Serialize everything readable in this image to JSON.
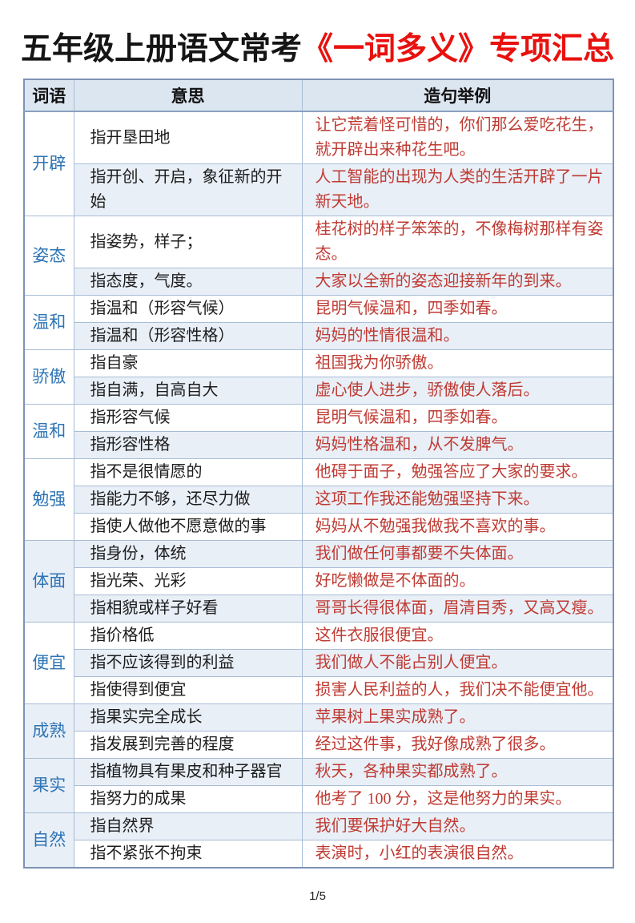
{
  "page": {
    "title_black": "五年级上册语文常考",
    "title_red": "《一词多义》专项汇总",
    "footer": "1/5"
  },
  "colors": {
    "title_red": "#e8110e",
    "word_blue": "#2e74b5",
    "example_red": "#bf3a32",
    "header_bg": "#dce6f1",
    "alt_row_bg": "#e9eff7",
    "border": "#a8bdd6"
  },
  "table": {
    "headers": [
      "词语",
      "意思",
      "造句举例"
    ],
    "groups": [
      {
        "word": "开辟",
        "rows": [
          {
            "meaning": "指开垦田地",
            "example": "让它荒着怪可惜的，你们那么爱吃花生，就开辟出来种花生吧。",
            "tall": true
          },
          {
            "meaning": "指开创、开启，象征新的开始",
            "example": "人工智能的出现为人类的生活开辟了一片新天地。",
            "tall": true
          }
        ]
      },
      {
        "word": "姿态",
        "rows": [
          {
            "meaning": "指姿势，样子；",
            "example": "桂花树的样子笨笨的，不像梅树那样有姿态。",
            "tall": true
          },
          {
            "meaning": "指态度，气度。",
            "example": "大家以全新的姿态迎接新年的到来。",
            "tall": false
          }
        ]
      },
      {
        "word": "温和",
        "rows": [
          {
            "meaning": "指温和（形容气候）",
            "example": "昆明气候温和，四季如春。",
            "tall": false
          },
          {
            "meaning": "指温和（形容性格）",
            "example": "妈妈的性情很温和。",
            "tall": false
          }
        ]
      },
      {
        "word": "骄傲",
        "rows": [
          {
            "meaning": "指自豪",
            "example": "祖国我为你骄傲。",
            "tall": false
          },
          {
            "meaning": "指自满，自高自大",
            "example": "虚心使人进步，骄傲使人落后。",
            "tall": false
          }
        ]
      },
      {
        "word": "温和",
        "rows": [
          {
            "meaning": "指形容气候",
            "example": "昆明气候温和，四季如春。",
            "tall": false
          },
          {
            "meaning": "指形容性格",
            "example": "妈妈性格温和，从不发脾气。",
            "tall": false
          }
        ]
      },
      {
        "word": "勉强",
        "rows": [
          {
            "meaning": "指不是很情愿的",
            "example": "他碍于面子，勉强答应了大家的要求。",
            "tall": false
          },
          {
            "meaning": "指能力不够，还尽力做",
            "example": "这项工作我还能勉强坚持下来。",
            "tall": false
          },
          {
            "meaning": "指使人做他不愿意做的事",
            "example": "妈妈从不勉强我做我不喜欢的事。",
            "tall": false
          }
        ]
      },
      {
        "word": "体面",
        "rows": [
          {
            "meaning": "指身份，体统",
            "example": "我们做任何事都要不失体面。",
            "tall": false
          },
          {
            "meaning": "指光荣、光彩",
            "example": "好吃懒做是不体面的。",
            "tall": false
          },
          {
            "meaning": "指相貌或样子好看",
            "example": "哥哥长得很体面，眉清目秀，又高又瘦。",
            "tall": false
          }
        ]
      },
      {
        "word": "便宜",
        "rows": [
          {
            "meaning": "指价格低",
            "example": "这件衣服很便宜。",
            "tall": false
          },
          {
            "meaning": "指不应该得到的利益",
            "example": "我们做人不能占别人便宜。",
            "tall": false
          },
          {
            "meaning": "指使得到便宜",
            "example": "损害人民利益的人，我们决不能便宜他。",
            "tall": false
          }
        ]
      },
      {
        "word": "成熟",
        "rows": [
          {
            "meaning": "指果实完全成长",
            "example": "苹果树上果实成熟了。",
            "tall": false
          },
          {
            "meaning": "指发展到完善的程度",
            "example": "经过这件事，我好像成熟了很多。",
            "tall": false
          }
        ]
      },
      {
        "word": "果实",
        "rows": [
          {
            "meaning": "指植物具有果皮和种子器官",
            "example": "秋天，各种果实都成熟了。",
            "tall": false
          },
          {
            "meaning": "指努力的成果",
            "example": "他考了 100 分，这是他努力的果实。",
            "tall": false
          }
        ]
      },
      {
        "word": "自然",
        "rows": [
          {
            "meaning": "指自然界",
            "example": "我们要保护好大自然。",
            "tall": false
          },
          {
            "meaning": "指不紧张不拘束",
            "example": "表演时，小红的表演很自然。",
            "tall": false
          }
        ]
      }
    ]
  }
}
